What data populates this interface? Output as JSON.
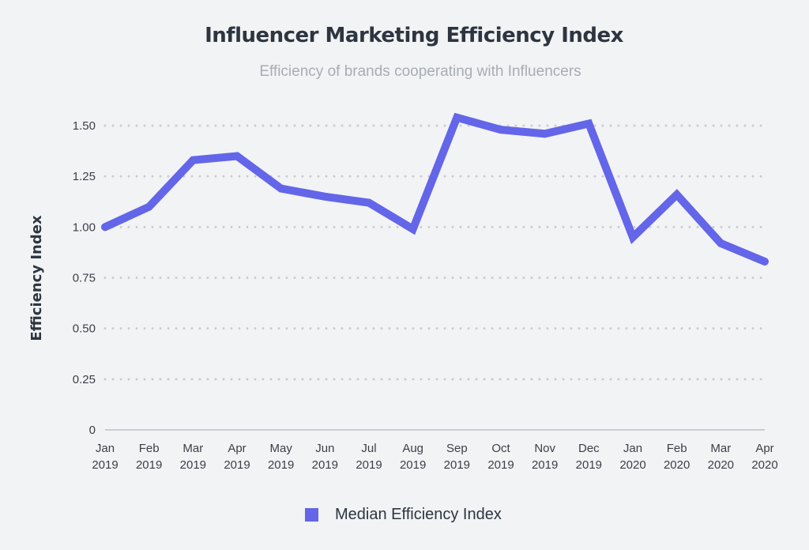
{
  "chart_data": {
    "type": "line",
    "title": "Influencer Marketing Efficiency Index",
    "subtitle": "Efficiency of brands cooperating with Influencers",
    "ylabel": "Efficiency Index",
    "xlabel": "",
    "ylim": [
      0,
      1.5
    ],
    "yticks": [
      "0",
      "0.25",
      "0.50",
      "0.75",
      "1.00",
      "1.25",
      "1.50"
    ],
    "ytick_values": [
      0,
      0.25,
      0.5,
      0.75,
      1.0,
      1.25,
      1.5
    ],
    "categories": [
      [
        "Jan",
        "2019"
      ],
      [
        "Feb",
        "2019"
      ],
      [
        "Mar",
        "2019"
      ],
      [
        "Apr",
        "2019"
      ],
      [
        "May",
        "2019"
      ],
      [
        "Jun",
        "2019"
      ],
      [
        "Jul",
        "2019"
      ],
      [
        "Aug",
        "2019"
      ],
      [
        "Sep",
        "2019"
      ],
      [
        "Oct",
        "2019"
      ],
      [
        "Nov",
        "2019"
      ],
      [
        "Dec",
        "2019"
      ],
      [
        "Jan",
        "2020"
      ],
      [
        "Feb",
        "2020"
      ],
      [
        "Mar",
        "2020"
      ],
      [
        "Apr",
        "2020"
      ]
    ],
    "grid": true,
    "legend_position": "bottom",
    "series": [
      {
        "name": "Median Efficiency Index",
        "color": "#6366e8",
        "values": [
          1.0,
          1.1,
          1.33,
          1.35,
          1.19,
          1.15,
          1.12,
          0.99,
          1.54,
          1.48,
          1.46,
          1.51,
          0.95,
          1.16,
          0.92,
          0.83
        ]
      }
    ]
  }
}
